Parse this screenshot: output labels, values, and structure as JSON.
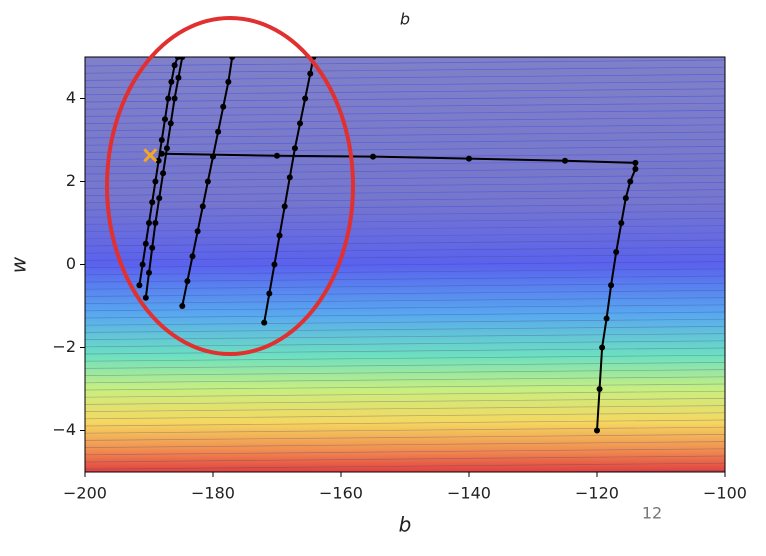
{
  "chart_data": {
    "type": "line",
    "title": "b",
    "xlabel": "b",
    "ylabel": "w",
    "page_number": "12",
    "xlim": [
      -200,
      -100
    ],
    "xticks": [
      {
        "value": -200,
        "label": "−200"
      },
      {
        "value": -180,
        "label": "−180"
      },
      {
        "value": -160,
        "label": "−160"
      },
      {
        "value": -140,
        "label": "−140"
      },
      {
        "value": -120,
        "label": "−120"
      },
      {
        "value": -100,
        "label": "−100"
      }
    ],
    "ylim": [
      -5,
      5
    ],
    "yticks": [
      {
        "value": -4,
        "label": "−4"
      },
      {
        "value": -2,
        "label": "−2"
      },
      0,
      2,
      4
    ],
    "series": [
      {
        "color": "#000000",
        "marker": "dot",
        "x": [
          -120,
          -119.6,
          -119.2,
          -118.5,
          -117.8,
          -117,
          -116.2,
          -115.5,
          -114.8,
          -114,
          -114,
          -125,
          -140,
          -155,
          -170,
          -188
        ],
        "values": [
          -4,
          -3,
          -2,
          -1.3,
          -0.5,
          0.3,
          1,
          1.6,
          2,
          2.3,
          2.45,
          2.5,
          2.55,
          2.6,
          2.62,
          2.67
        ]
      },
      {
        "color": "#000000",
        "marker": "dot",
        "x": [
          -191.5,
          -191,
          -190.5,
          -190,
          -189.5,
          -189,
          -188.5,
          -188,
          -187.5,
          -187,
          -186.5,
          -186,
          -185.5
        ],
        "values": [
          -0.5,
          0,
          0.5,
          1,
          1.5,
          2,
          2.5,
          3,
          3.5,
          4,
          4.4,
          4.8,
          5
        ]
      },
      {
        "color": "#000000",
        "marker": "dot",
        "x": [
          -190.5,
          -190,
          -189.5,
          -189,
          -188.4,
          -187.8,
          -187.2,
          -186.6,
          -186,
          -185.4,
          -184.8
        ],
        "values": [
          -0.8,
          -0.2,
          0.4,
          1,
          1.6,
          2.2,
          2.8,
          3.4,
          4,
          4.5,
          5
        ]
      },
      {
        "color": "#000000",
        "marker": "dot",
        "x": [
          -184.8,
          -184,
          -183.2,
          -182.4,
          -181.6,
          -180.8,
          -180,
          -179.2,
          -178.4,
          -177.6,
          -177
        ],
        "values": [
          -1,
          -0.4,
          0.2,
          0.8,
          1.4,
          2,
          2.6,
          3.2,
          3.8,
          4.4,
          5
        ]
      },
      {
        "color": "#000000",
        "marker": "dot",
        "x": [
          -172,
          -171.2,
          -170.4,
          -169.6,
          -168.8,
          -168,
          -167.2,
          -166.4,
          -165.6,
          -164.8,
          -164.3
        ],
        "values": [
          -1.4,
          -0.7,
          0,
          0.7,
          1.4,
          2.1,
          2.8,
          3.4,
          4,
          4.6,
          5
        ]
      },
      {
        "color": "#f5a623",
        "marker": "x",
        "x": [
          -189.8
        ],
        "values": [
          2.63
        ]
      }
    ]
  }
}
